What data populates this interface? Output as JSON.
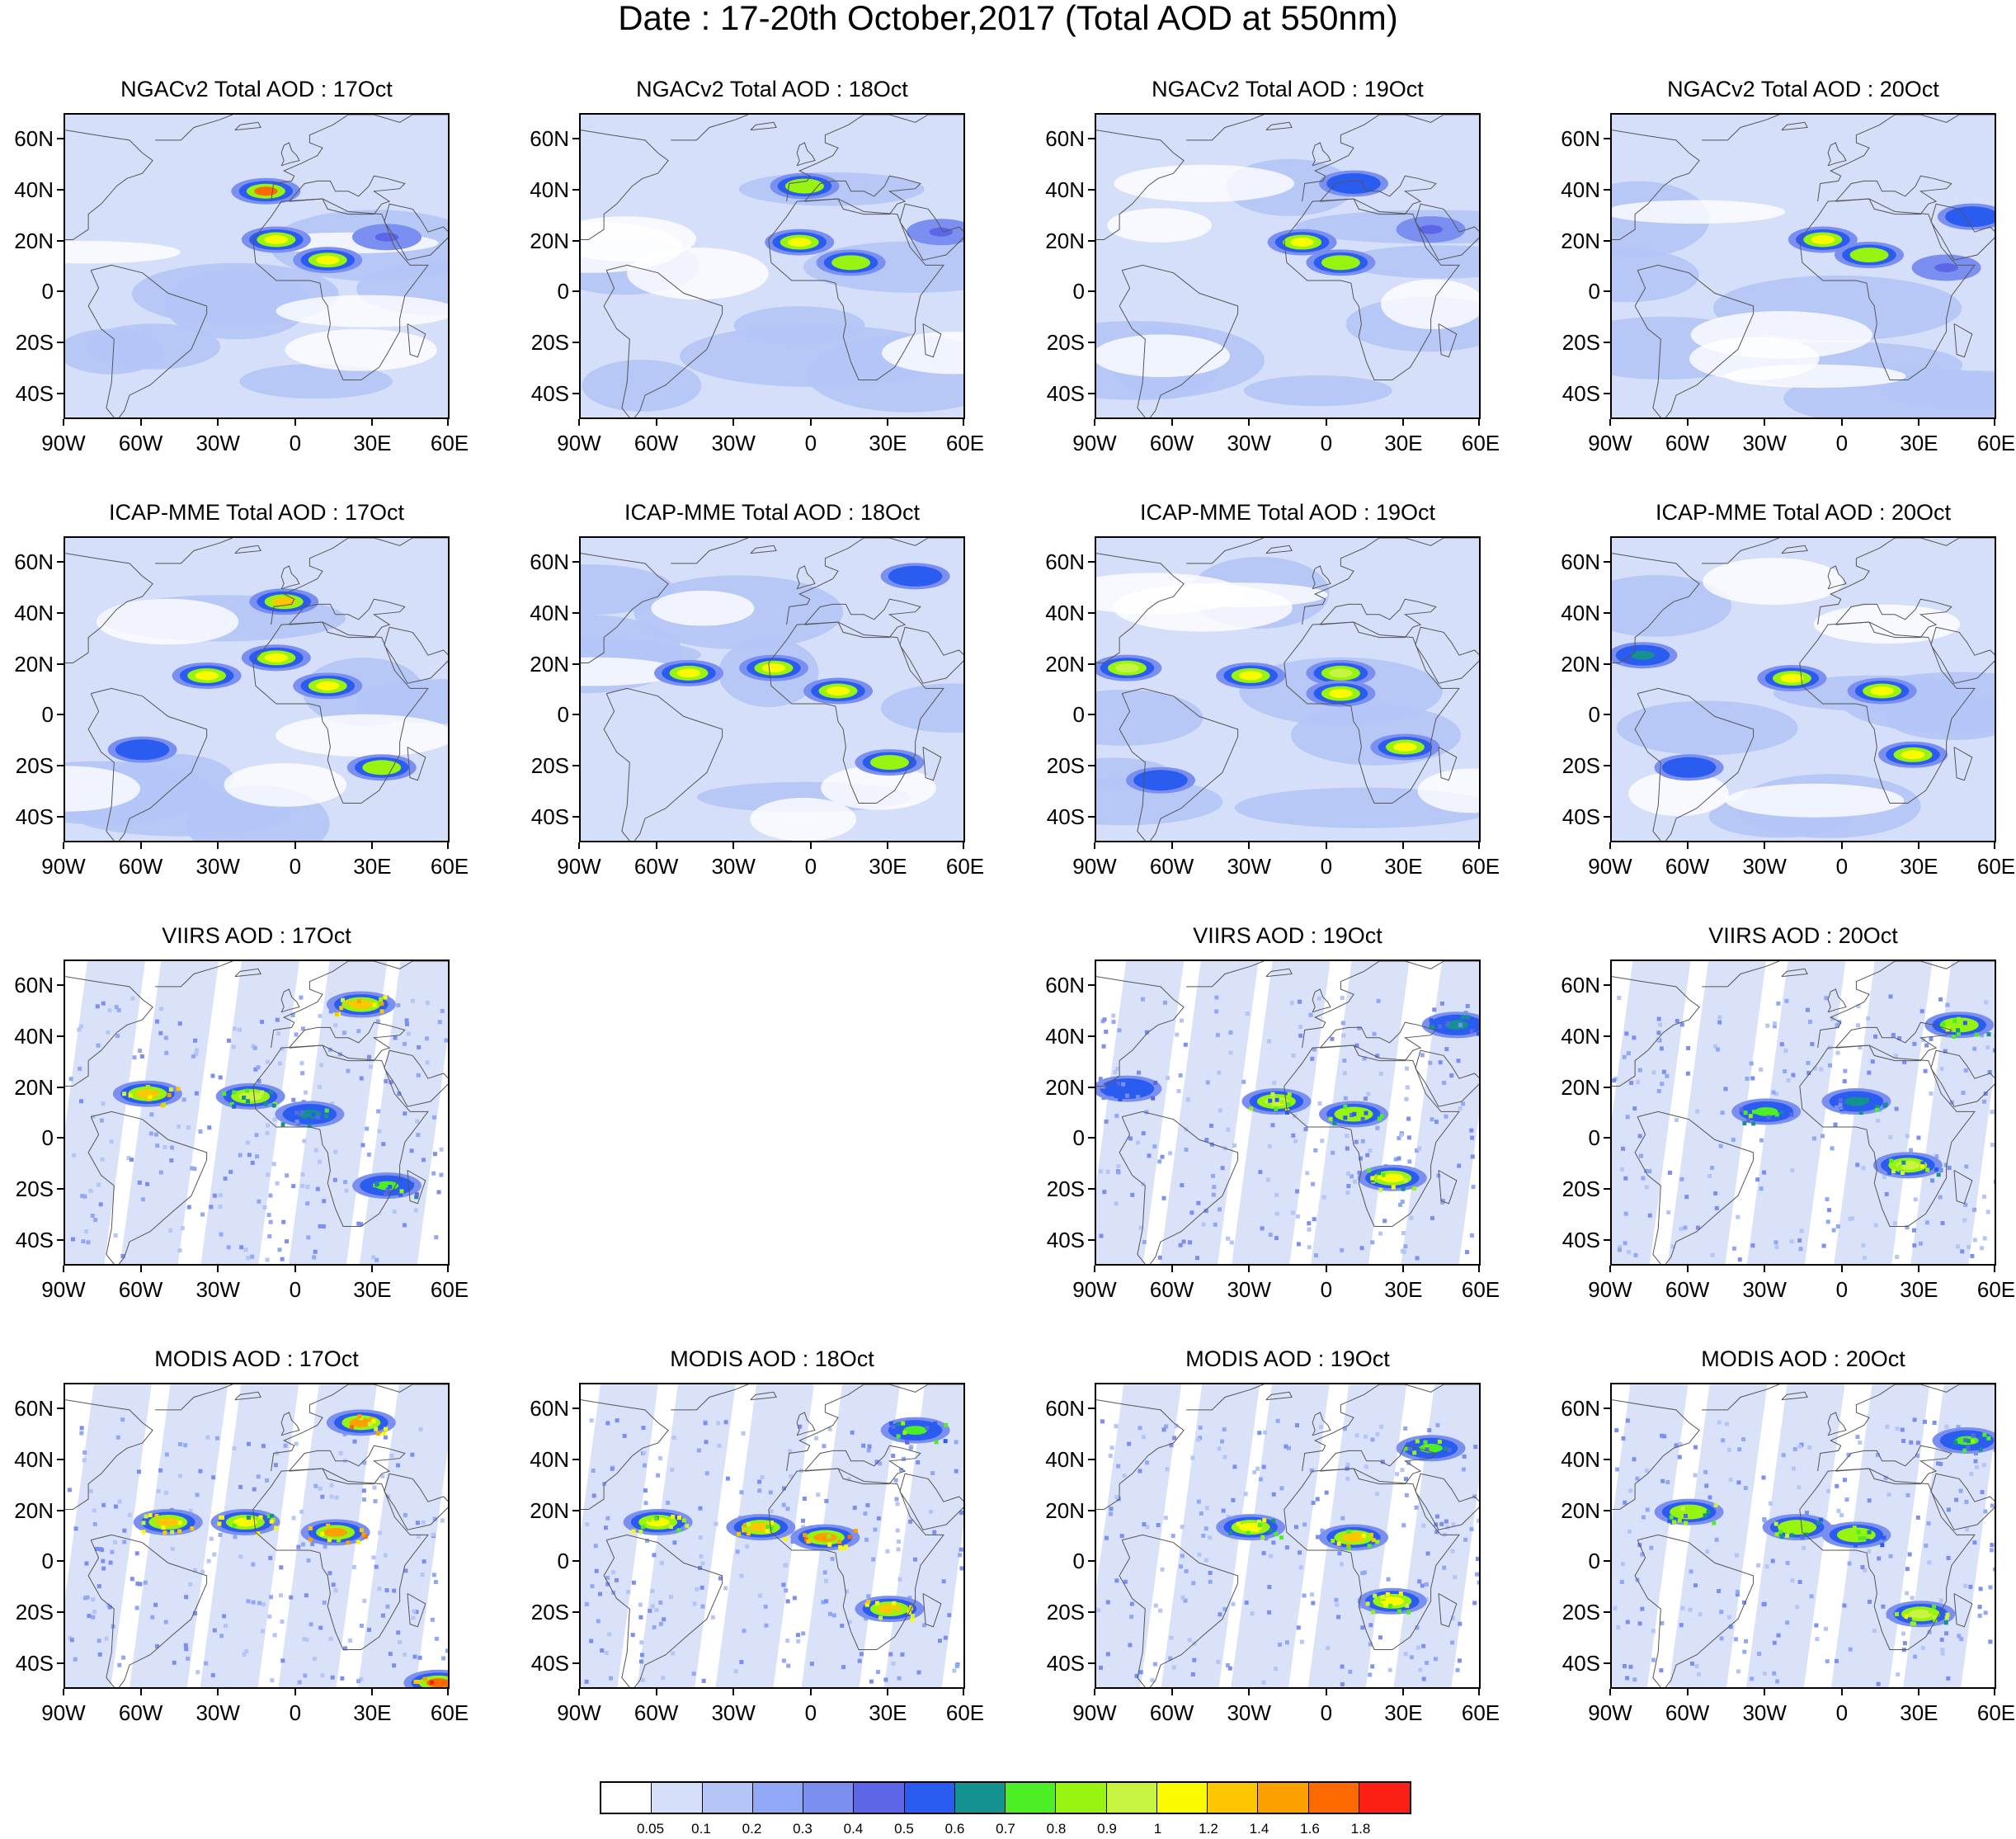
{
  "title": "Date : 17-20th October,2017 (Total AOD at 550nm)",
  "lat_ticks": [
    "60N",
    "40N",
    "20N",
    "0",
    "20S",
    "40S"
  ],
  "lon_ticks": [
    "90W",
    "60W",
    "30W",
    "0",
    "30E",
    "60E"
  ],
  "map_domain": {
    "lon_range": [
      -90,
      60
    ],
    "lat_range": [
      -50,
      70
    ]
  },
  "panels": [
    {
      "title": "NGACv2 Total AOD : 17Oct",
      "row": 0,
      "col": 0,
      "kind": "model",
      "plumes": [
        {
          "lon": -8,
          "lat": 21,
          "value": 1.1
        },
        {
          "lon": 12,
          "lat": 13,
          "value": 1.0
        },
        {
          "lon": -12,
          "lat": 40,
          "value": 1.6
        },
        {
          "lon": 35,
          "lat": 22,
          "value": 0.4
        }
      ]
    },
    {
      "title": "NGACv2 Total AOD : 18Oct",
      "row": 0,
      "col": 1,
      "kind": "model",
      "plumes": [
        {
          "lon": -5,
          "lat": 20,
          "value": 1.0
        },
        {
          "lon": 15,
          "lat": 12,
          "value": 0.8
        },
        {
          "lon": -3,
          "lat": 42,
          "value": 0.8
        },
        {
          "lon": 50,
          "lat": 24,
          "value": 0.4
        }
      ]
    },
    {
      "title": "NGACv2 Total AOD : 19Oct",
      "row": 0,
      "col": 2,
      "kind": "model",
      "plumes": [
        {
          "lon": -10,
          "lat": 20,
          "value": 1.0
        },
        {
          "lon": 5,
          "lat": 12,
          "value": 0.8
        },
        {
          "lon": 10,
          "lat": 43,
          "value": 0.5
        },
        {
          "lon": 40,
          "lat": 25,
          "value": 0.4
        }
      ]
    },
    {
      "title": "NGACv2 Total AOD : 20Oct",
      "row": 0,
      "col": 3,
      "kind": "model",
      "plumes": [
        {
          "lon": -8,
          "lat": 21,
          "value": 1.0
        },
        {
          "lon": 10,
          "lat": 15,
          "value": 0.8
        },
        {
          "lon": 50,
          "lat": 30,
          "value": 0.5
        },
        {
          "lon": 40,
          "lat": 10,
          "value": 0.4
        }
      ]
    },
    {
      "title": "ICAP-MME Total AOD : 17Oct",
      "row": 1,
      "col": 0,
      "kind": "model",
      "plumes": [
        {
          "lon": -35,
          "lat": 16,
          "value": 1.0
        },
        {
          "lon": -8,
          "lat": 23,
          "value": 1.0
        },
        {
          "lon": 12,
          "lat": 12,
          "value": 1.0
        },
        {
          "lon": -5,
          "lat": 45,
          "value": 1.2
        },
        {
          "lon": 33,
          "lat": -20,
          "value": 0.8
        },
        {
          "lon": -60,
          "lat": -13,
          "value": 0.5
        }
      ]
    },
    {
      "title": "ICAP-MME Total AOD : 18Oct",
      "row": 1,
      "col": 1,
      "kind": "model",
      "plumes": [
        {
          "lon": -48,
          "lat": 17,
          "value": 1.0
        },
        {
          "lon": -15,
          "lat": 19,
          "value": 1.0
        },
        {
          "lon": 10,
          "lat": 10,
          "value": 1.0
        },
        {
          "lon": 30,
          "lat": -18,
          "value": 0.8
        },
        {
          "lon": 40,
          "lat": 55,
          "value": 0.5
        }
      ]
    },
    {
      "title": "ICAP-MME Total AOD : 19Oct",
      "row": 1,
      "col": 2,
      "kind": "model",
      "plumes": [
        {
          "lon": -78,
          "lat": 19,
          "value": 0.9
        },
        {
          "lon": -30,
          "lat": 16,
          "value": 1.0
        },
        {
          "lon": 5,
          "lat": 17,
          "value": 0.9
        },
        {
          "lon": 5,
          "lat": 9,
          "value": 1.0
        },
        {
          "lon": 30,
          "lat": -12,
          "value": 1.0
        },
        {
          "lon": -65,
          "lat": -25,
          "value": 0.5
        }
      ]
    },
    {
      "title": "ICAP-MME Total AOD : 20Oct",
      "row": 1,
      "col": 3,
      "kind": "model",
      "plumes": [
        {
          "lon": -78,
          "lat": 24,
          "value": 0.6
        },
        {
          "lon": -20,
          "lat": 15,
          "value": 1.0
        },
        {
          "lon": 15,
          "lat": 10,
          "value": 1.0
        },
        {
          "lon": 27,
          "lat": -15,
          "value": 1.0
        },
        {
          "lon": -60,
          "lat": -20,
          "value": 0.5
        }
      ]
    },
    {
      "title": "VIIRS AOD : 17Oct",
      "row": 2,
      "col": 0,
      "kind": "satellite",
      "plumes": [
        {
          "lon": -18,
          "lat": 17,
          "value": 0.9
        },
        {
          "lon": -58,
          "lat": 18,
          "value": 1.2
        },
        {
          "lon": 5,
          "lat": 10,
          "value": 0.6
        },
        {
          "lon": 25,
          "lat": 53,
          "value": 1.2
        },
        {
          "lon": 35,
          "lat": -18,
          "value": 0.7
        }
      ]
    },
    {
      "title": "VIIRS AOD : 19Oct",
      "row": 2,
      "col": 2,
      "kind": "satellite",
      "plumes": [
        {
          "lon": -78,
          "lat": 20,
          "value": 0.5
        },
        {
          "lon": -20,
          "lat": 15,
          "value": 0.9
        },
        {
          "lon": 10,
          "lat": 10,
          "value": 0.8
        },
        {
          "lon": 25,
          "lat": -15,
          "value": 1.0
        },
        {
          "lon": 50,
          "lat": 45,
          "value": 0.6
        }
      ]
    },
    {
      "title": "VIIRS AOD : 20Oct",
      "row": 2,
      "col": 3,
      "kind": "satellite",
      "plumes": [
        {
          "lon": -30,
          "lat": 11,
          "value": 0.7
        },
        {
          "lon": 5,
          "lat": 15,
          "value": 0.6
        },
        {
          "lon": 25,
          "lat": -10,
          "value": 0.9
        },
        {
          "lon": 45,
          "lat": 45,
          "value": 0.8
        }
      ]
    },
    {
      "title": "MODIS AOD : 17Oct",
      "row": 3,
      "col": 0,
      "kind": "satellite",
      "plumes": [
        {
          "lon": -50,
          "lat": 16,
          "value": 1.2
        },
        {
          "lon": -20,
          "lat": 16,
          "value": 1.0
        },
        {
          "lon": 15,
          "lat": 12,
          "value": 1.4
        },
        {
          "lon": 25,
          "lat": 55,
          "value": 1.4
        },
        {
          "lon": 55,
          "lat": -47,
          "value": 1.6
        }
      ]
    },
    {
      "title": "MODIS AOD : 18Oct",
      "row": 3,
      "col": 1,
      "kind": "satellite",
      "plumes": [
        {
          "lon": -60,
          "lat": 16,
          "value": 1.0
        },
        {
          "lon": -20,
          "lat": 14,
          "value": 1.2
        },
        {
          "lon": 5,
          "lat": 10,
          "value": 1.4
        },
        {
          "lon": 30,
          "lat": -18,
          "value": 1.2
        },
        {
          "lon": 40,
          "lat": 52,
          "value": 0.7
        }
      ]
    },
    {
      "title": "MODIS AOD : 19Oct",
      "row": 3,
      "col": 2,
      "kind": "satellite",
      "plumes": [
        {
          "lon": -30,
          "lat": 14,
          "value": 1.0
        },
        {
          "lon": 10,
          "lat": 10,
          "value": 1.2
        },
        {
          "lon": 25,
          "lat": -15,
          "value": 1.0
        },
        {
          "lon": 40,
          "lat": 45,
          "value": 0.7
        }
      ]
    },
    {
      "title": "MODIS AOD : 20Oct",
      "row": 3,
      "col": 3,
      "kind": "satellite",
      "plumes": [
        {
          "lon": -60,
          "lat": 20,
          "value": 0.8
        },
        {
          "lon": -18,
          "lat": 14,
          "value": 0.8
        },
        {
          "lon": 5,
          "lat": 11,
          "value": 0.8
        },
        {
          "lon": 30,
          "lat": -20,
          "value": 0.9
        },
        {
          "lon": 48,
          "lat": 48,
          "value": 0.7
        }
      ]
    }
  ],
  "colorbar": {
    "labels": [
      "0.05",
      "0.1",
      "0.2",
      "0.3",
      "0.4",
      "0.5",
      "0.6",
      "0.7",
      "0.8",
      "0.9",
      "1",
      "1.2",
      "1.4",
      "1.6",
      "1.8"
    ],
    "bins": [
      0.05,
      0.1,
      0.2,
      0.3,
      0.4,
      0.5,
      0.6,
      0.7,
      0.8,
      0.9,
      1,
      1.2,
      1.4,
      1.6,
      1.8
    ],
    "colors": [
      "#ffffff",
      "#d6dffa",
      "#b4c5f6",
      "#91a9f5",
      "#7a8ff0",
      "#5d66e6",
      "#2a5cf0",
      "#14928f",
      "#4cee25",
      "#96f410",
      "#c7f441",
      "#fbfb00",
      "#fcc700",
      "#fca000",
      "#fc6a00",
      "#fc1f16"
    ]
  }
}
